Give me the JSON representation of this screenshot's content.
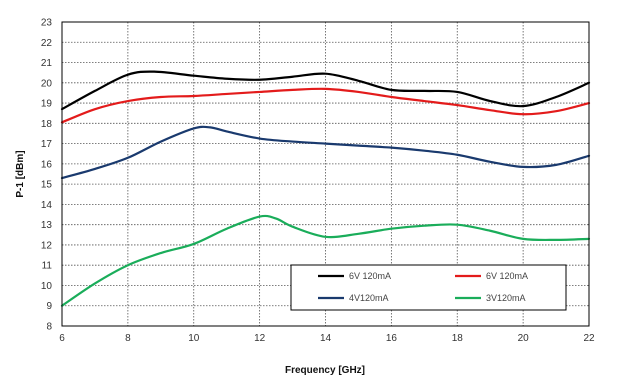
{
  "chart_data": {
    "type": "line",
    "xlabel": "Frequency [GHz]",
    "ylabel": "P-1 [dBm]",
    "xlim": [
      6,
      22
    ],
    "ylim": [
      8,
      23
    ],
    "x_ticks": [
      "6",
      "8",
      "10",
      "12",
      "14",
      "16",
      "18",
      "20",
      "22"
    ],
    "y_ticks": [
      "8",
      "9",
      "10",
      "11",
      "12",
      "13",
      "14",
      "15",
      "16",
      "17",
      "18",
      "19",
      "20",
      "21",
      "22",
      "23"
    ],
    "grid": true,
    "grid_style": "dotted",
    "legend_placement": "bottom-right",
    "series": [
      {
        "name": "6V 120mA",
        "color": "#000000",
        "x": [
          6,
          7,
          8,
          8.8,
          10,
          11,
          12,
          13,
          14,
          15,
          16,
          17,
          18,
          19,
          20,
          21,
          22
        ],
        "y": [
          18.7,
          19.6,
          20.4,
          20.55,
          20.35,
          20.2,
          20.15,
          20.3,
          20.45,
          20.1,
          19.65,
          19.6,
          19.55,
          19.1,
          18.85,
          19.3,
          20.0
        ]
      },
      {
        "name": "6V 120mA",
        "color": "#e31b1b",
        "x": [
          6,
          7,
          8,
          9,
          10,
          11,
          12,
          13,
          14,
          15,
          16,
          17,
          18,
          19,
          20,
          21,
          22
        ],
        "y": [
          18.05,
          18.7,
          19.1,
          19.3,
          19.35,
          19.45,
          19.55,
          19.65,
          19.7,
          19.55,
          19.3,
          19.1,
          18.9,
          18.65,
          18.45,
          18.6,
          19.0
        ]
      },
      {
        "name": "4V120mA",
        "color": "#1a3a6e",
        "x": [
          6,
          7,
          8,
          9,
          10,
          10.5,
          11,
          12,
          13,
          14,
          15,
          16,
          17,
          18,
          19,
          20,
          21,
          22
        ],
        "y": [
          15.3,
          15.75,
          16.3,
          17.1,
          17.75,
          17.8,
          17.6,
          17.25,
          17.1,
          17.0,
          16.9,
          16.8,
          16.65,
          16.45,
          16.1,
          15.85,
          15.95,
          16.4
        ]
      },
      {
        "name": "3V120mA",
        "color": "#1aad5a",
        "x": [
          6,
          7,
          8,
          9,
          10,
          11,
          12,
          12.5,
          13,
          14,
          15,
          16,
          17,
          18,
          19,
          20,
          21,
          22
        ],
        "y": [
          9.0,
          10.1,
          11.0,
          11.6,
          12.05,
          12.8,
          13.4,
          13.3,
          12.9,
          12.4,
          12.55,
          12.8,
          12.95,
          13.0,
          12.7,
          12.3,
          12.25,
          12.3
        ]
      }
    ]
  }
}
